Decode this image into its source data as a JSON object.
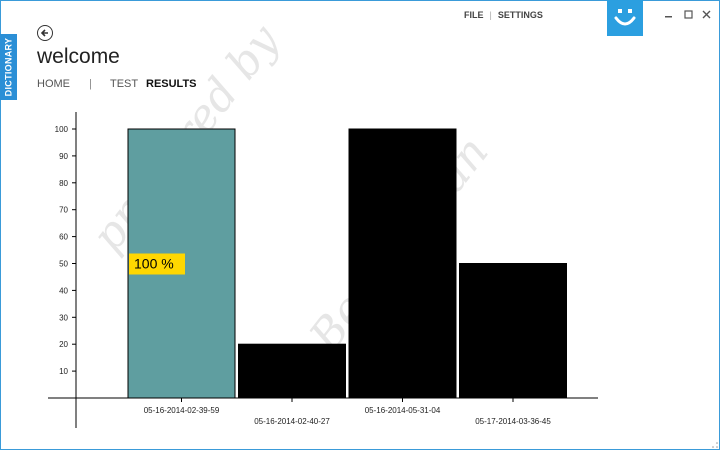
{
  "sidebar_tab": {
    "label": "DICTIONARY"
  },
  "header": {
    "title": "welcome"
  },
  "nav": {
    "home": "HOME",
    "separator": "|",
    "test": "TEST",
    "results": "RESULTS"
  },
  "top_menu": {
    "file": "FILE",
    "separator": "|",
    "settings": "SETTINGS"
  },
  "colors": {
    "accent": "#2b9fe0",
    "highlight_bar": "#5f9ea0",
    "bar": "#000000",
    "label_badge": "#ffd700"
  },
  "icons": {
    "back": "back-arrow-icon",
    "app_logo": "smiley-icon",
    "minimize": "minimize-icon",
    "maximize": "maximize-icon",
    "close": "close-icon"
  },
  "watermark": [
    "prepared by",
    "Ben Raman"
  ],
  "chart_data": {
    "type": "bar",
    "categories": [
      "05-16-2014-02-39-59",
      "05-16-2014-02-40-27",
      "05-16-2014-05-31-04",
      "05-17-2014-03-36-45"
    ],
    "values": [
      100,
      20,
      100,
      50
    ],
    "ylim": [
      0,
      100
    ],
    "yticks": [
      10,
      20,
      30,
      40,
      50,
      60,
      70,
      80,
      90,
      100
    ],
    "selected_index": 0,
    "selected_label": "100 %",
    "title": "",
    "xlabel": "",
    "ylabel": ""
  }
}
